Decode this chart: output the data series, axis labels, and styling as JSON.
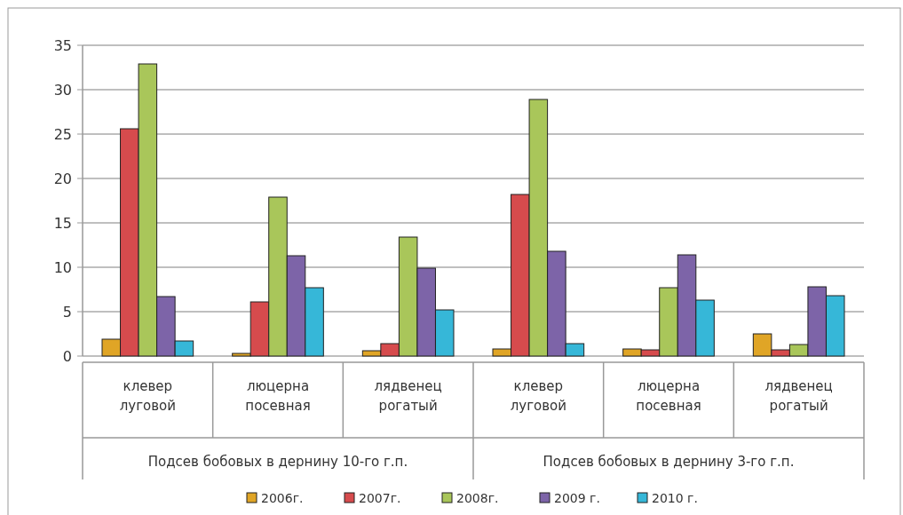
{
  "chart_data": {
    "type": "bar",
    "categories": [
      "клевер луговой",
      "люцерна посевная",
      "лядвенец рогатый",
      "клевер луговой",
      "люцерна посевная",
      "лядвенец рогатый"
    ],
    "series": [
      {
        "name": "2006г.",
        "color": "#e0a526",
        "values": [
          1.9,
          0.3,
          0.6,
          0.8,
          0.8,
          2.5
        ]
      },
      {
        "name": "2007г.",
        "color": "#d64b4d",
        "values": [
          25.6,
          6.1,
          1.4,
          18.2,
          0.7,
          0.7
        ]
      },
      {
        "name": "2008г.",
        "color": "#a9c65a",
        "values": [
          32.9,
          17.9,
          13.4,
          28.9,
          7.7,
          1.3
        ]
      },
      {
        "name": "2009 г.",
        "color": "#7d64a8",
        "values": [
          6.7,
          11.3,
          9.9,
          11.8,
          11.4,
          7.8
        ]
      },
      {
        "name": "2010 г.",
        "color": "#36b7d8",
        "values": [
          1.7,
          7.7,
          5.2,
          1.4,
          6.3,
          6.8
        ]
      }
    ],
    "annotations": [
      "Подсев бобовых в дернину 10-го г.п.",
      "Подсев бобовых в дернину 3-го г.п."
    ],
    "ylim": [
      0,
      35
    ],
    "yticks": [
      0,
      5,
      10,
      15,
      20,
      25,
      30,
      35
    ],
    "grid": "y",
    "legend": "bottom"
  }
}
